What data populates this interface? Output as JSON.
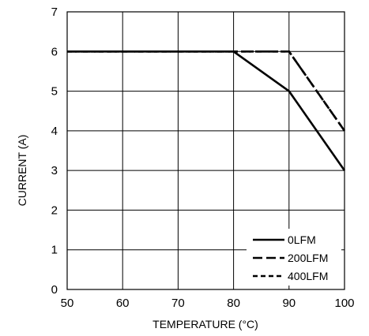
{
  "chart_data": {
    "type": "line",
    "title": "",
    "xlabel": "TEMPERATURE (°C)",
    "ylabel": "CURRENT (A)",
    "xlim": [
      50,
      100
    ],
    "ylim": [
      0,
      7
    ],
    "xticks": [
      50,
      60,
      70,
      80,
      90,
      100
    ],
    "yticks": [
      0,
      1,
      2,
      3,
      4,
      5,
      6,
      7
    ],
    "grid": true,
    "legend_position": "bottom-right",
    "series": [
      {
        "name": "0LFM",
        "style": "solid",
        "x": [
          50,
          80,
          90,
          100
        ],
        "y": [
          6,
          6,
          5,
          3
        ]
      },
      {
        "name": "200LFM",
        "style": "long-dashed",
        "x": [
          50,
          90,
          100
        ],
        "y": [
          6,
          6,
          4
        ]
      },
      {
        "name": "400LFM",
        "style": "short-dashed",
        "x": [
          50,
          90,
          100
        ],
        "y": [
          6,
          6,
          4
        ]
      }
    ]
  }
}
